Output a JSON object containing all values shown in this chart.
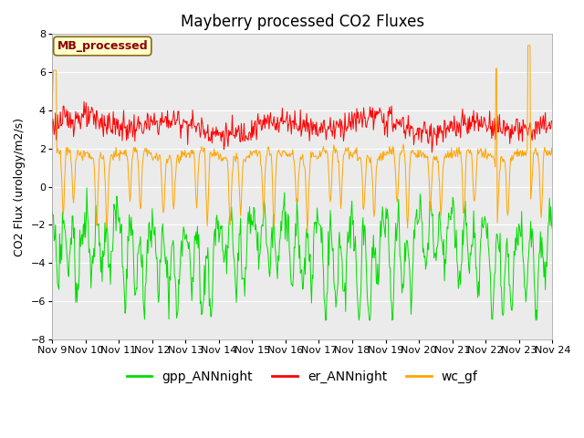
{
  "title": "Mayberry processed CO2 Fluxes",
  "ylabel": "CO2 Flux (urology/m2/s)",
  "ylim": [
    -8,
    8
  ],
  "yticks": [
    -8,
    -6,
    -4,
    -2,
    0,
    2,
    4,
    6,
    8
  ],
  "xticklabels": [
    "Nov 9",
    "Nov 10",
    "Nov 11",
    "Nov 12",
    "Nov 13",
    "Nov 14",
    "Nov 15",
    "Nov 16",
    "Nov 17",
    "Nov 18",
    "Nov 19",
    "Nov 20",
    "Nov 21",
    "Nov 22",
    "Nov 23",
    "Nov 24"
  ],
  "legend_label": "MB_processed",
  "legend_text_color": "#8B0000",
  "legend_bg_color": "#FFFFCC",
  "legend_edge_color": "#8B6914",
  "line_colors": {
    "gpp_ANNnight": "#00DD00",
    "er_ANNnight": "#FF0000",
    "wc_gf": "#FFA500"
  },
  "plot_bg_color": "#EBEBEB",
  "fig_bg_color": "#FFFFFF",
  "title_fontsize": 12,
  "axis_fontsize": 9,
  "tick_fontsize": 8,
  "legend_fontsize": 10,
  "n_days": 15,
  "n_per_day": 48
}
